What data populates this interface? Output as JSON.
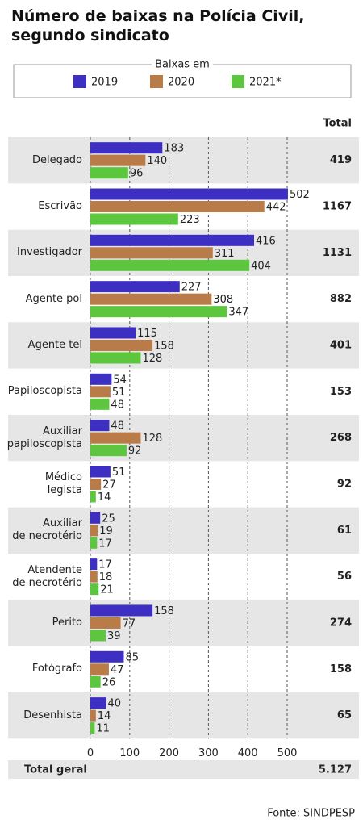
{
  "chart_data": {
    "type": "bar",
    "orientation": "horizontal",
    "title": "Número de baixas na Polícia Civil, segundo sindicato",
    "legend_title": "Baixas em",
    "categories": [
      "Delegado",
      "Escrivão",
      "Investigador",
      "Agente pol",
      "Agente tel",
      "Papiloscopista",
      "Auxiliar\npapiloscopista",
      "Médico\nlegista",
      "Auxiliar\nde necrotério",
      "Atendente\nde necrotério",
      "Perito",
      "Fotógrafo",
      "Desenhista"
    ],
    "series": [
      {
        "name": "2019",
        "color": "#3d2fc2",
        "values": [
          183,
          502,
          416,
          227,
          115,
          54,
          48,
          51,
          25,
          17,
          158,
          85,
          40
        ]
      },
      {
        "name": "2020",
        "color": "#b97b47",
        "values": [
          140,
          442,
          311,
          308,
          158,
          51,
          128,
          27,
          19,
          18,
          77,
          47,
          14
        ]
      },
      {
        "name": "2021*",
        "color": "#5cc63f",
        "values": [
          96,
          223,
          404,
          347,
          128,
          48,
          92,
          14,
          17,
          21,
          39,
          26,
          11
        ]
      }
    ],
    "totals_label": "Total",
    "totals": [
      419,
      1167,
      1131,
      882,
      401,
      153,
      268,
      92,
      61,
      56,
      274,
      158,
      65
    ],
    "grand_total_label": "Total geral",
    "grand_total": {
      "value": 5127,
      "label": "5.127"
    },
    "xlim": [
      0,
      500
    ],
    "xticks": [
      0,
      100,
      200,
      300,
      400,
      500
    ],
    "grid": true,
    "source": "Fonte: SINDPESP"
  }
}
